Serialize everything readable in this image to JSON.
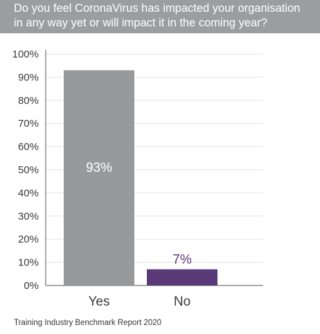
{
  "colors": {
    "title_band": "#9b9d9f",
    "bar_yes": "#97999b",
    "bar_no": "#5b3a7a",
    "label_yes": "#ffffff",
    "label_no": "#5b3a7a",
    "grid": "#e3e3e3",
    "axis": "#555555"
  },
  "chart_data": {
    "type": "bar",
    "title_lines": [
      "Do you feel CoronaVirus has impacted your organisation",
      "in any way yet or will impact it in the coming year?"
    ],
    "categories": [
      "Yes",
      "No"
    ],
    "values": [
      93,
      7
    ],
    "data_labels": [
      "93%",
      "7%"
    ],
    "ylim": [
      0,
      100
    ],
    "yticks": [
      "0%",
      "10%",
      "20%",
      "30%",
      "40%",
      "50%",
      "60%",
      "70%",
      "80%",
      "90%",
      "100%"
    ],
    "grid": true,
    "xlabel": "",
    "ylabel": ""
  },
  "source": "Training Industry Benchmark Report 2020"
}
